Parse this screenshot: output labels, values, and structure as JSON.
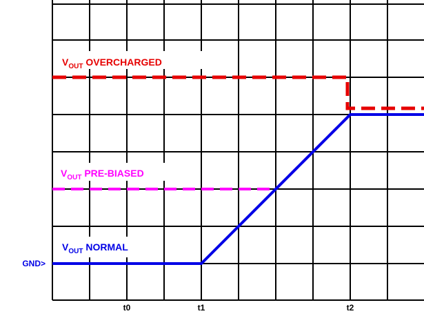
{
  "diagram": {
    "gnd_label": "GND>",
    "x_ticks": [
      "t0",
      "t1",
      "t2"
    ],
    "traces": {
      "overcharged": {
        "label_v": "V",
        "label_sub": "OUT",
        "label_rest": " OVERCHARGED",
        "color": "#e60000",
        "style": "dashed"
      },
      "prebiased": {
        "label_v": "V",
        "label_sub": "OUT",
        "label_rest": " PRE-BIASED",
        "color": "#ff00ff",
        "style": "dashed"
      },
      "normal": {
        "label_v": "V",
        "label_sub": "OUT",
        "label_rest": " NORMAL",
        "color": "#0000e6",
        "style": "solid"
      }
    },
    "grid": true,
    "grid_color": "#000000"
  }
}
